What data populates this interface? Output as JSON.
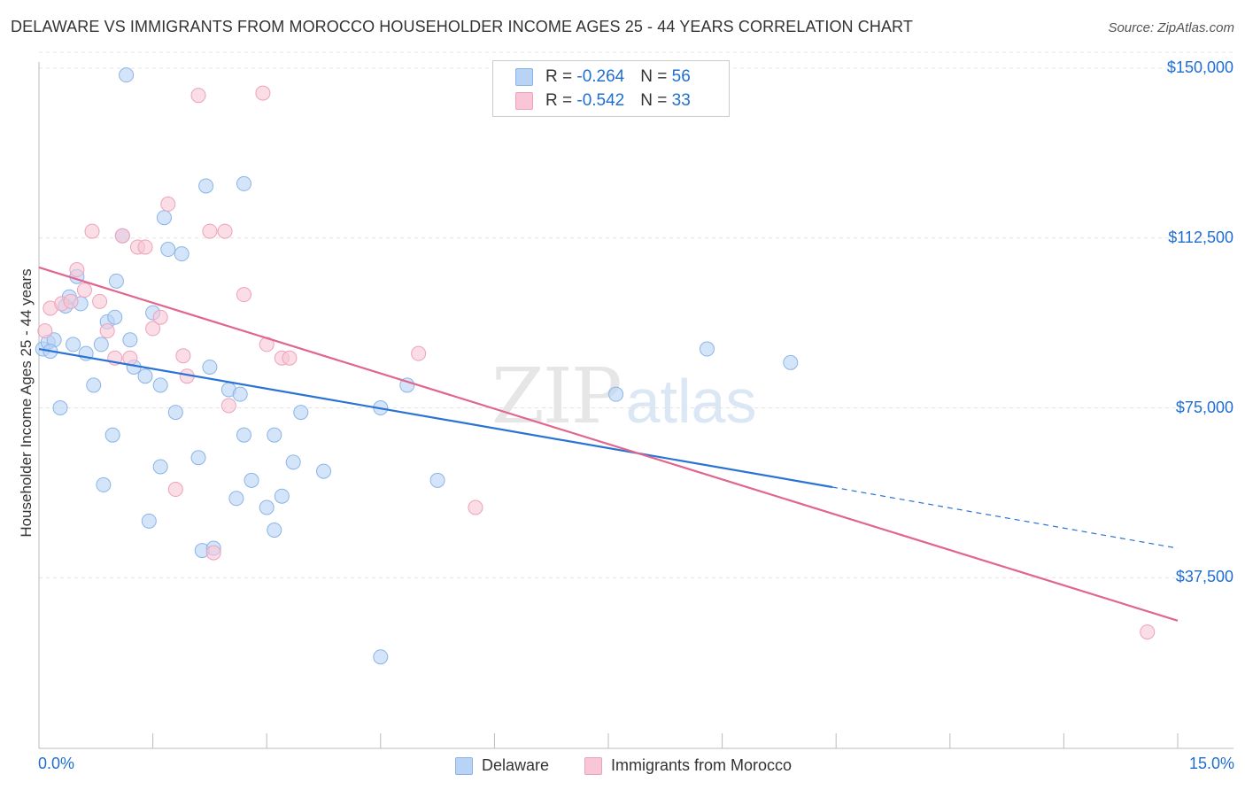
{
  "header": {
    "title": "DELAWARE VS IMMIGRANTS FROM MOROCCO HOUSEHOLDER INCOME AGES 25 - 44 YEARS CORRELATION CHART",
    "source": "Source: ZipAtlas.com"
  },
  "watermark": {
    "zip": "ZIP",
    "atlas": "atlas"
  },
  "stats": {
    "rows": [
      {
        "r_label": "R = ",
        "r_value": "-0.264",
        "n_label": "N = ",
        "n_value": "56"
      },
      {
        "r_label": "R = ",
        "r_value": "-0.542",
        "n_label": "N = ",
        "n_value": "33"
      }
    ]
  },
  "legend": {
    "items": [
      "Delaware",
      "Immigrants from Morocco"
    ]
  },
  "colors": {
    "delaware_fill": "#b8d3f5",
    "delaware_stroke": "#8ab4e8",
    "delaware_line": "#2a72d4",
    "morocco_fill": "#f8c6d6",
    "morocco_stroke": "#eda2bb",
    "morocco_line": "#e0668e",
    "axis_text": "#1f6fd1",
    "grid": "#e3e3e3"
  },
  "chart_data": {
    "type": "scatter",
    "xlabel": "",
    "ylabel": "Householder Income Ages 25 - 44 years",
    "xlim": [
      0,
      15
    ],
    "ylim": [
      0,
      155000
    ],
    "x_tick_labels": [
      "0.0%",
      "15.0%"
    ],
    "y_ticks": [
      37500,
      75000,
      112500,
      150000
    ],
    "y_tick_labels": [
      "$37,500",
      "$75,000",
      "$112,500",
      "$150,000"
    ],
    "grid": "dashed horizontal",
    "series": [
      {
        "name": "Delaware",
        "points": [
          [
            0.05,
            88000
          ],
          [
            0.12,
            89500
          ],
          [
            0.2,
            90000
          ],
          [
            0.28,
            75000
          ],
          [
            0.35,
            97500
          ],
          [
            0.4,
            99500
          ],
          [
            0.45,
            89000
          ],
          [
            0.5,
            104000
          ],
          [
            0.62,
            87000
          ],
          [
            0.72,
            80000
          ],
          [
            0.82,
            89000
          ],
          [
            0.85,
            58000
          ],
          [
            0.9,
            94000
          ],
          [
            0.97,
            69000
          ],
          [
            1.0,
            95000
          ],
          [
            1.02,
            103000
          ],
          [
            1.1,
            113000
          ],
          [
            1.15,
            148500
          ],
          [
            1.2,
            90000
          ],
          [
            1.25,
            84000
          ],
          [
            1.4,
            82000
          ],
          [
            1.45,
            50000
          ],
          [
            1.5,
            96000
          ],
          [
            1.6,
            80000
          ],
          [
            1.6,
            62000
          ],
          [
            1.65,
            117000
          ],
          [
            1.7,
            110000
          ],
          [
            1.8,
            74000
          ],
          [
            1.88,
            109000
          ],
          [
            2.1,
            64000
          ],
          [
            2.15,
            43500
          ],
          [
            2.2,
            124000
          ],
          [
            2.25,
            84000
          ],
          [
            2.3,
            44000
          ],
          [
            2.5,
            79000
          ],
          [
            2.6,
            55000
          ],
          [
            2.65,
            78000
          ],
          [
            2.7,
            124500
          ],
          [
            2.7,
            69000
          ],
          [
            2.8,
            59000
          ],
          [
            3.0,
            53000
          ],
          [
            3.1,
            48000
          ],
          [
            3.1,
            69000
          ],
          [
            3.2,
            55500
          ],
          [
            3.35,
            63000
          ],
          [
            3.45,
            74000
          ],
          [
            3.75,
            61000
          ],
          [
            4.5,
            75000
          ],
          [
            4.5,
            20000
          ],
          [
            4.85,
            80000
          ],
          [
            5.25,
            59000
          ],
          [
            7.6,
            78000
          ],
          [
            8.8,
            88000
          ],
          [
            9.9,
            85000
          ],
          [
            0.15,
            87500
          ],
          [
            0.55,
            98000
          ]
        ]
      },
      {
        "name": "Immigrants from Morocco",
        "points": [
          [
            0.08,
            92000
          ],
          [
            0.15,
            97000
          ],
          [
            0.3,
            98000
          ],
          [
            0.42,
            98500
          ],
          [
            0.5,
            105500
          ],
          [
            0.6,
            101000
          ],
          [
            0.7,
            114000
          ],
          [
            0.8,
            98500
          ],
          [
            0.9,
            92000
          ],
          [
            1.0,
            86000
          ],
          [
            1.1,
            113000
          ],
          [
            1.2,
            86000
          ],
          [
            1.3,
            110500
          ],
          [
            1.4,
            110500
          ],
          [
            1.5,
            92500
          ],
          [
            1.6,
            95000
          ],
          [
            1.7,
            120000
          ],
          [
            1.8,
            57000
          ],
          [
            1.9,
            86500
          ],
          [
            1.95,
            82000
          ],
          [
            2.1,
            144000
          ],
          [
            2.25,
            114000
          ],
          [
            2.3,
            43000
          ],
          [
            2.45,
            114000
          ],
          [
            2.5,
            75500
          ],
          [
            2.7,
            100000
          ],
          [
            2.95,
            144500
          ],
          [
            3.0,
            89000
          ],
          [
            3.2,
            86000
          ],
          [
            3.3,
            86000
          ],
          [
            5.0,
            87000
          ],
          [
            5.75,
            53000
          ],
          [
            14.6,
            25500
          ]
        ]
      }
    ],
    "trend_lines": [
      {
        "series": "Delaware",
        "start": [
          0,
          88000
        ],
        "end": [
          10.45,
          57500
        ],
        "dashed_to": [
          15,
          44000
        ]
      },
      {
        "series": "Immigrants from Morocco",
        "start": [
          0,
          106000
        ],
        "end": [
          15,
          28000
        ]
      }
    ]
  }
}
